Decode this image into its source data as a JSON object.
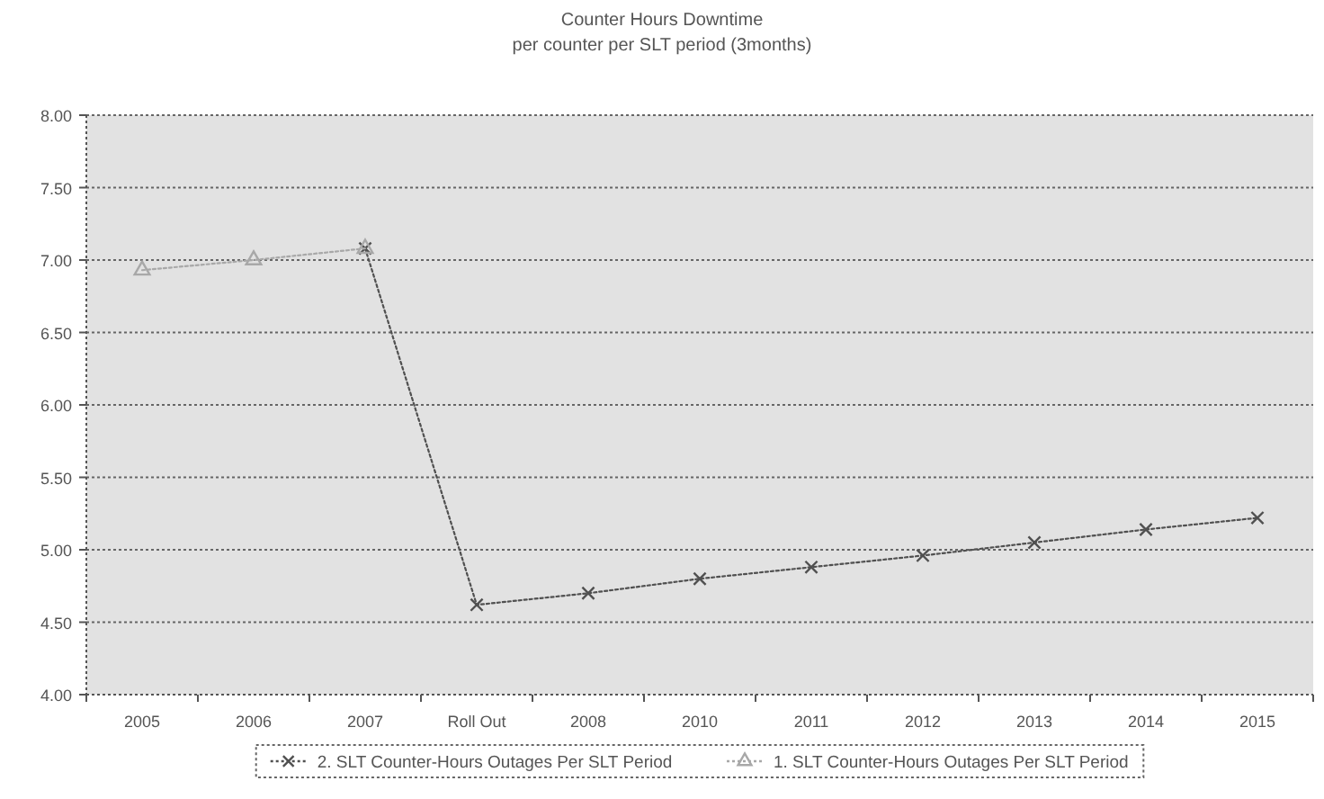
{
  "chart_data": {
    "type": "line",
    "title": "Counter Hours Downtime",
    "subtitle": "per counter per SLT period (3months)",
    "categories": [
      "2005",
      "2006",
      "2007",
      "Roll Out",
      "2008",
      "2010",
      "2011",
      "2012",
      "2013",
      "2014",
      "2015"
    ],
    "series": [
      {
        "name": "2. SLT Counter-Hours Outages Per SLT Period",
        "color": "#505050",
        "marker": "cross",
        "values": [
          null,
          null,
          7.08,
          4.62,
          4.7,
          4.8,
          4.88,
          4.96,
          5.05,
          5.14,
          5.22
        ]
      },
      {
        "name": "1. SLT Counter-Hours Outages Per SLT Period",
        "color": "#a8a8a8",
        "marker": "triangle",
        "values": [
          6.93,
          7.0,
          7.08,
          null,
          null,
          null,
          null,
          null,
          null,
          null,
          null
        ]
      }
    ],
    "ylim": [
      4,
      8
    ],
    "yticks": [
      {
        "value": 4,
        "label": "4.00"
      },
      {
        "value": 4.5,
        "label": "4.50"
      },
      {
        "value": 5,
        "label": "5.00"
      },
      {
        "value": 5.5,
        "label": "5.50"
      },
      {
        "value": 6,
        "label": "6.00"
      },
      {
        "value": 6.5,
        "label": "6.50"
      },
      {
        "value": 7,
        "label": "7.00"
      },
      {
        "value": 7.5,
        "label": "7.50"
      },
      {
        "value": 8,
        "label": "8.00"
      }
    ],
    "grid": "y",
    "legend": "bottom",
    "line_style": "dotted"
  }
}
